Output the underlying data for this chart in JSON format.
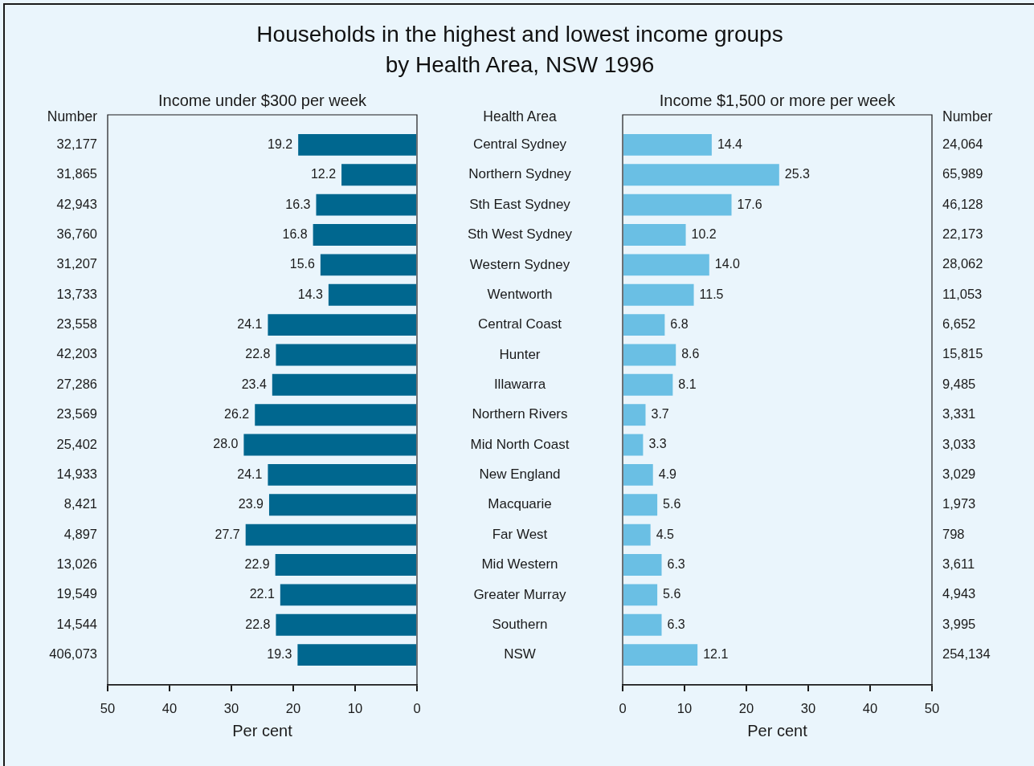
{
  "chart_data": [
    {
      "type": "bar",
      "orientation": "horizontal",
      "title": "Households in the highest and lowest income groups by Health Area, NSW 1996",
      "subtitle": "Income under $300 per week",
      "xlabel": "Per cent",
      "ylabel": "Health Area",
      "categories": [
        "Central Sydney",
        "Northern Sydney",
        "Sth East Sydney",
        "Sth West Sydney",
        "Western Sydney",
        "Wentworth",
        "Central Coast",
        "Hunter",
        "Illawarra",
        "Northern Rivers",
        "Mid North Coast",
        "New England",
        "Macquarie",
        "Far West",
        "Mid Western",
        "Greater Murray",
        "Southern",
        "NSW"
      ],
      "values": [
        19.2,
        12.2,
        16.3,
        16.8,
        15.6,
        14.3,
        24.1,
        22.8,
        23.4,
        26.2,
        28.0,
        24.1,
        23.9,
        27.7,
        22.9,
        22.1,
        22.8,
        19.3
      ],
      "value_labels": [
        "19.2",
        "12.2",
        "16.3",
        "16.8",
        "15.6",
        "14.3",
        "24.1",
        "22.8",
        "23.4",
        "26.2",
        "28.0",
        "24.1",
        "23.9",
        "27.7",
        "22.9",
        "22.1",
        "22.8",
        "19.3"
      ],
      "color": "#00678f",
      "xlim": [
        50,
        0
      ],
      "xticks": [
        50,
        40,
        30,
        20,
        10,
        0
      ],
      "annotations": [
        "Number",
        "32,177",
        "31,865",
        "42,943",
        "36,760",
        "31,207",
        "13,733",
        "23,558",
        "42,203",
        "27,286",
        "23,569",
        "25,402",
        "14,933",
        "8,421",
        "4,897",
        "13,026",
        "19,549",
        "14,544",
        "406,073"
      ]
    },
    {
      "type": "bar",
      "orientation": "horizontal",
      "title": "Income $1,500 or more per week",
      "xlabel": "Per cent",
      "categories": [
        null,
        null,
        null,
        null,
        null,
        null,
        null,
        null,
        null,
        null,
        null,
        null,
        null,
        null,
        null,
        null,
        null,
        null
      ],
      "values": [
        14.4,
        25.3,
        17.6,
        10.2,
        14.0,
        11.5,
        6.8,
        8.6,
        8.1,
        3.7,
        3.3,
        4.9,
        5.6,
        4.5,
        6.3,
        5.6,
        6.3,
        12.1
      ],
      "value_labels": [
        "14.4",
        "25.3",
        "17.6",
        "10.2",
        "14.0",
        "11.5",
        "6.8",
        "8.6",
        "8.1",
        "3.7",
        "3.3",
        "4.9",
        "5.6",
        "4.5",
        "6.3",
        "5.6",
        "6.3",
        "12.1"
      ],
      "color": "#6abfe4",
      "xlim": [
        0,
        50
      ],
      "xticks": [
        0,
        10,
        20,
        30,
        40,
        50
      ],
      "annotations": [
        "Number",
        "24,064",
        "65,989",
        "46,128",
        "22,173",
        "28,062",
        "11,053",
        "6,652",
        "15,815",
        "9,485",
        "3,331",
        "3,033",
        "3,029",
        "1,973",
        "798",
        "3,611",
        "4,943",
        "3,995",
        "254,134"
      ]
    }
  ]
}
